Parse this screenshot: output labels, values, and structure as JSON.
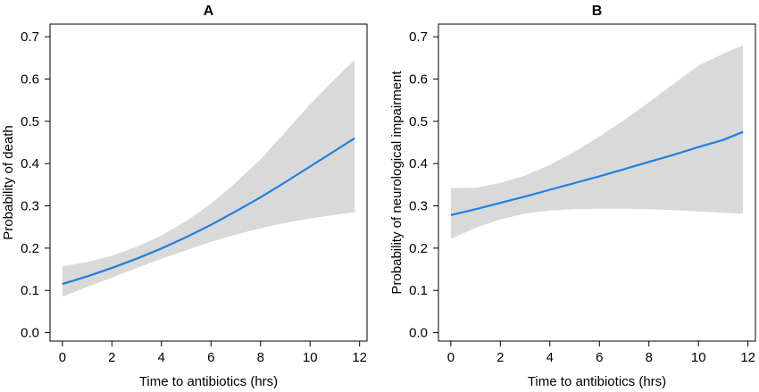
{
  "chart_data": [
    {
      "type": "line",
      "title": "A",
      "xlabel": "Time to antibiotics (hrs)",
      "ylabel": "Probability of death",
      "xlim": [
        -0.5,
        12.3
      ],
      "ylim": [
        -0.02,
        0.73
      ],
      "xticks": [
        0,
        2,
        4,
        6,
        8,
        10,
        12
      ],
      "xtick_labels": [
        "0",
        "2",
        "4",
        "6",
        "8",
        "10",
        "12"
      ],
      "yticks": [
        0.0,
        0.1,
        0.2,
        0.3,
        0.4,
        0.5,
        0.6,
        0.7
      ],
      "ytick_labels": [
        "0.0",
        "0.1",
        "0.2",
        "0.3",
        "0.4",
        "0.5",
        "0.6",
        "0.7"
      ],
      "grid": false,
      "line_color": "#1f7fe0",
      "band_color": "#d9d9d9",
      "x": [
        0,
        1,
        2,
        3,
        4,
        5,
        6,
        7,
        8,
        9,
        10,
        11,
        11.8
      ],
      "y": [
        0.115,
        0.133,
        0.153,
        0.175,
        0.199,
        0.226,
        0.255,
        0.287,
        0.32,
        0.356,
        0.393,
        0.43,
        0.46
      ],
      "lower": [
        0.085,
        0.108,
        0.13,
        0.153,
        0.175,
        0.195,
        0.215,
        0.232,
        0.247,
        0.26,
        0.27,
        0.279,
        0.285
      ],
      "upper": [
        0.157,
        0.167,
        0.182,
        0.203,
        0.23,
        0.264,
        0.305,
        0.355,
        0.41,
        0.475,
        0.54,
        0.6,
        0.645
      ]
    },
    {
      "type": "line",
      "title": "B",
      "xlabel": "Time to antibiotics (hrs)",
      "ylabel": "Probability of neurological impairment",
      "xlim": [
        -0.5,
        12.3
      ],
      "ylim": [
        -0.02,
        0.73
      ],
      "xticks": [
        0,
        2,
        4,
        6,
        8,
        10,
        12
      ],
      "xtick_labels": [
        "0",
        "2",
        "4",
        "6",
        "8",
        "10",
        "12"
      ],
      "yticks": [
        0.0,
        0.1,
        0.2,
        0.3,
        0.4,
        0.5,
        0.6,
        0.7
      ],
      "ytick_labels": [
        "0.0",
        "0.1",
        "0.2",
        "0.3",
        "0.4",
        "0.5",
        "0.6",
        "0.7"
      ],
      "grid": false,
      "line_color": "#1f7fe0",
      "band_color": "#d9d9d9",
      "x": [
        0,
        1,
        2,
        3,
        4,
        5,
        6,
        7,
        8,
        9,
        10,
        11,
        11.8
      ],
      "y": [
        0.278,
        0.292,
        0.307,
        0.322,
        0.338,
        0.354,
        0.37,
        0.387,
        0.404,
        0.421,
        0.439,
        0.456,
        0.475
      ],
      "lower": [
        0.222,
        0.248,
        0.268,
        0.282,
        0.289,
        0.292,
        0.293,
        0.293,
        0.292,
        0.29,
        0.287,
        0.284,
        0.281
      ],
      "upper": [
        0.342,
        0.343,
        0.354,
        0.372,
        0.397,
        0.428,
        0.464,
        0.503,
        0.545,
        0.589,
        0.632,
        0.66,
        0.68
      ]
    }
  ]
}
